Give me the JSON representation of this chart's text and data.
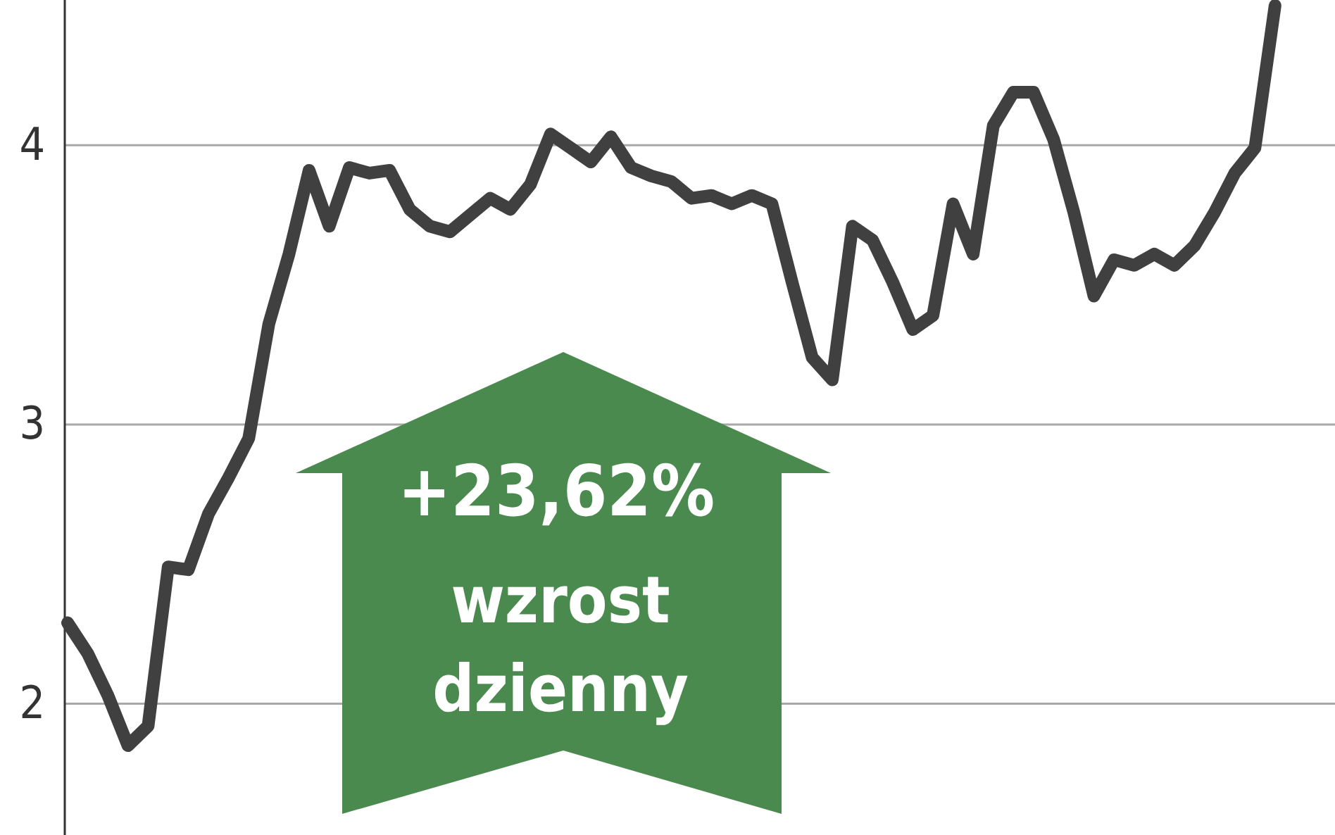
{
  "chart_data": {
    "type": "line",
    "categories": [
      null,
      null,
      null,
      null,
      null,
      null,
      null,
      null,
      null,
      null,
      null,
      null,
      null,
      null,
      null,
      null,
      null,
      null,
      null,
      null,
      null,
      null,
      null,
      null,
      null,
      null,
      null,
      null,
      null,
      null,
      null,
      null,
      null,
      null,
      null,
      null,
      null,
      null,
      null,
      null,
      null,
      null,
      null,
      null,
      null,
      null,
      null,
      null,
      null,
      null,
      null,
      null,
      null,
      null,
      null,
      null,
      null,
      null,
      null,
      null,
      null,
      null,
      null
    ],
    "series": [
      {
        "color": "#404040",
        "values": [
          2.29,
          2.18,
          2.03,
          1.85,
          1.92,
          2.49,
          2.48,
          2.68,
          2.81,
          2.95,
          3.36,
          3.61,
          3.91,
          3.71,
          3.92,
          3.9,
          3.91,
          3.77,
          3.71,
          3.69,
          3.75,
          3.81,
          3.77,
          3.86,
          4.04,
          3.99,
          3.94,
          4.03,
          3.92,
          3.89,
          3.87,
          3.81,
          3.82,
          3.79,
          3.82,
          3.79,
          3.51,
          3.24,
          3.16,
          3.71,
          3.66,
          3.51,
          3.34,
          3.39,
          3.79,
          3.61,
          4.07,
          4.19,
          4.19,
          4.02,
          3.76,
          3.46,
          3.59,
          3.57,
          3.61,
          3.57,
          3.64,
          3.76,
          3.9,
          3.99,
          4.5,
          null,
          null
        ]
      }
    ],
    "ylim": [
      1.53,
      4.52
    ],
    "yticks": [
      2,
      3,
      4
    ],
    "grid": "y",
    "tick_labels": "y",
    "marker": "none",
    "line_style": "solid",
    "annotations": [
      "+23,62%",
      "wzrost dzienny"
    ]
  }
}
